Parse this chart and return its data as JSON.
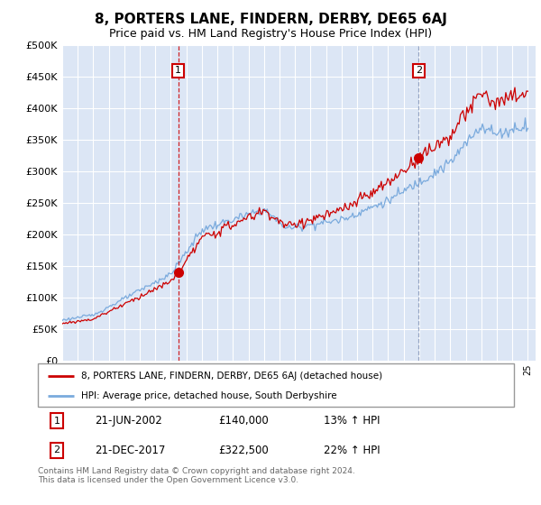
{
  "title": "8, PORTERS LANE, FINDERN, DERBY, DE65 6AJ",
  "subtitle": "Price paid vs. HM Land Registry's House Price Index (HPI)",
  "ylim": [
    0,
    500000
  ],
  "yticks": [
    0,
    50000,
    100000,
    150000,
    200000,
    250000,
    300000,
    350000,
    400000,
    450000,
    500000
  ],
  "plot_bg_color": "#dce6f5",
  "legend_label_red": "8, PORTERS LANE, FINDERN, DERBY, DE65 6AJ (detached house)",
  "legend_label_blue": "HPI: Average price, detached house, South Derbyshire",
  "transaction1_date": "21-JUN-2002",
  "transaction1_price": "£140,000",
  "transaction1_hpi": "13% ↑ HPI",
  "transaction1_year": 2002.47,
  "transaction1_value": 140000,
  "transaction2_date": "21-DEC-2017",
  "transaction2_price": "£322,500",
  "transaction2_hpi": "22% ↑ HPI",
  "transaction2_year": 2017.97,
  "transaction2_value": 322500,
  "footer": "Contains HM Land Registry data © Crown copyright and database right 2024.\nThis data is licensed under the Open Government Licence v3.0.",
  "red_color": "#cc0000",
  "blue_color": "#7aaadd",
  "vline1_color": "#cc0000",
  "vline2_color": "#8899bb",
  "title_fontsize": 11,
  "subtitle_fontsize": 9
}
